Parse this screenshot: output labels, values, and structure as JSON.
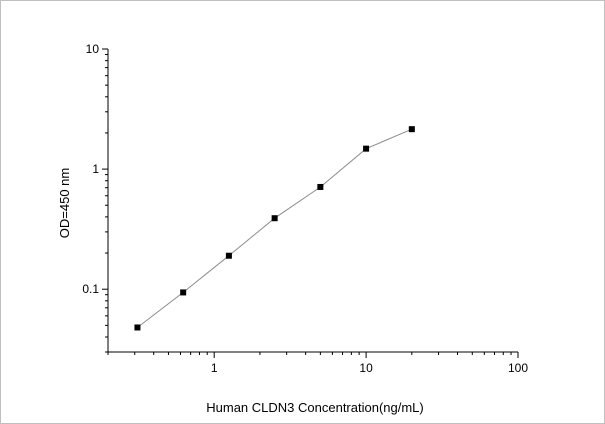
{
  "chart_data": {
    "type": "line",
    "title": "",
    "xlabel": "Human CLDN3 Concentration(ng/mL)",
    "ylabel": "OD=450 nm",
    "x_scale": "log",
    "y_scale": "log",
    "xlim": [
      0.2,
      100
    ],
    "ylim": [
      0.03,
      10
    ],
    "x_tick_labels": [
      "1",
      "10",
      "100"
    ],
    "y_tick_labels": [
      "0.1",
      "1",
      "10"
    ],
    "grid": false,
    "series": [
      {
        "x": [
          0.3125,
          0.625,
          1.25,
          2.5,
          5,
          10,
          20
        ],
        "y": [
          0.048,
          0.094,
          0.19,
          0.39,
          0.71,
          1.48,
          2.15
        ]
      }
    ],
    "colors": {
      "line": "#8c8c8c",
      "marker": "#000000",
      "axis": "#000000"
    }
  }
}
